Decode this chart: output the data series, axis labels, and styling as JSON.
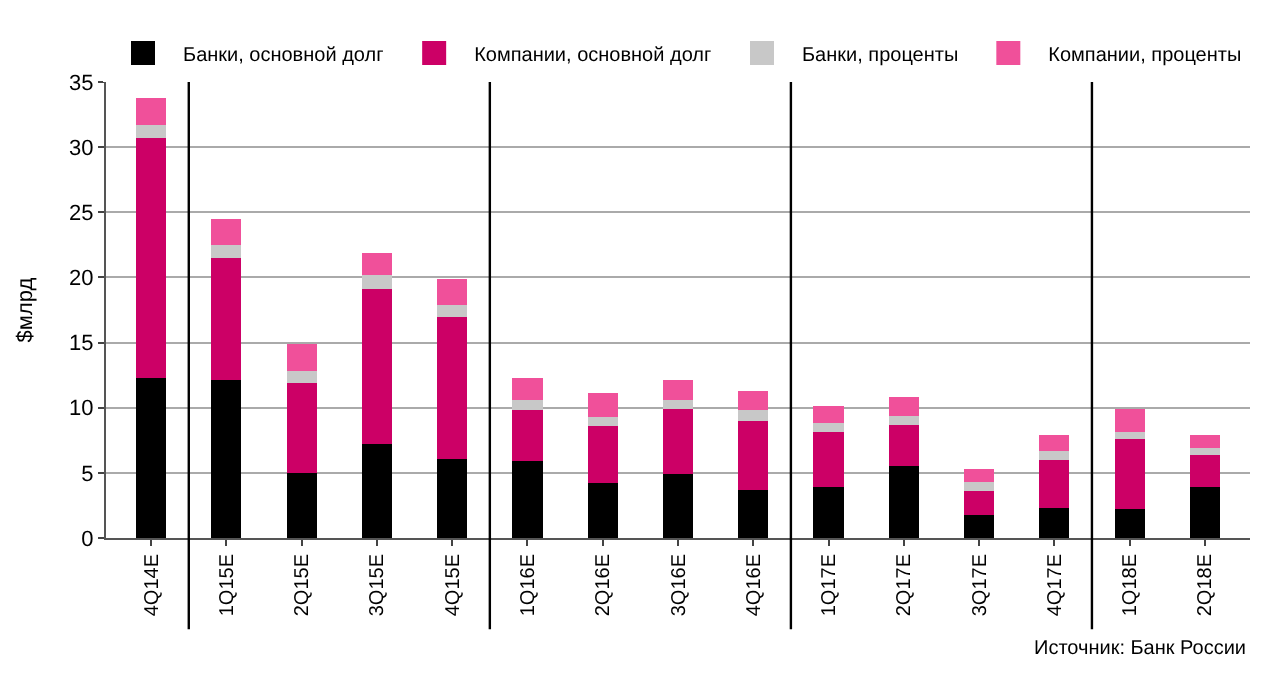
{
  "chart_data": {
    "type": "bar",
    "stacked": true,
    "ylabel": "$млрд",
    "categories": [
      "4Q14E",
      "1Q15E",
      "2Q15E",
      "3Q15E",
      "4Q15E",
      "1Q16E",
      "2Q16E",
      "3Q16E",
      "4Q16E",
      "1Q17E",
      "2Q17E",
      "3Q17E",
      "4Q17E",
      "1Q18E",
      "2Q18E"
    ],
    "series": [
      {
        "name": "Банки, основной долг",
        "color": "#000000",
        "values": [
          12.3,
          12.1,
          5.0,
          7.2,
          6.1,
          5.9,
          4.2,
          4.9,
          3.7,
          3.9,
          5.5,
          1.8,
          2.3,
          2.2,
          3.9
        ]
      },
      {
        "name": "Компании, основной долг",
        "color": "#cc0066",
        "values": [
          18.4,
          9.4,
          6.9,
          11.9,
          10.9,
          3.9,
          4.4,
          5.0,
          5.3,
          4.2,
          3.2,
          1.8,
          3.7,
          5.4,
          2.5
        ]
      },
      {
        "name": "Банки, проценты",
        "color": "#c8c8c8",
        "values": [
          1.0,
          1.0,
          0.9,
          1.1,
          0.9,
          0.8,
          0.7,
          0.7,
          0.8,
          0.7,
          0.7,
          0.7,
          0.7,
          0.5,
          0.5
        ]
      },
      {
        "name": "Компании, проценты",
        "color": "#f0509a",
        "values": [
          2.1,
          2.0,
          2.1,
          1.7,
          2.0,
          1.7,
          1.8,
          1.5,
          1.5,
          1.3,
          1.4,
          1.0,
          1.2,
          1.8,
          1.0
        ]
      }
    ],
    "ylim": [
      0,
      35
    ],
    "yticks": [
      0,
      5,
      10,
      15,
      20,
      25,
      30,
      35
    ],
    "grid": "y",
    "legend": "top",
    "annotations": [
      "Источник: Банк России"
    ]
  }
}
